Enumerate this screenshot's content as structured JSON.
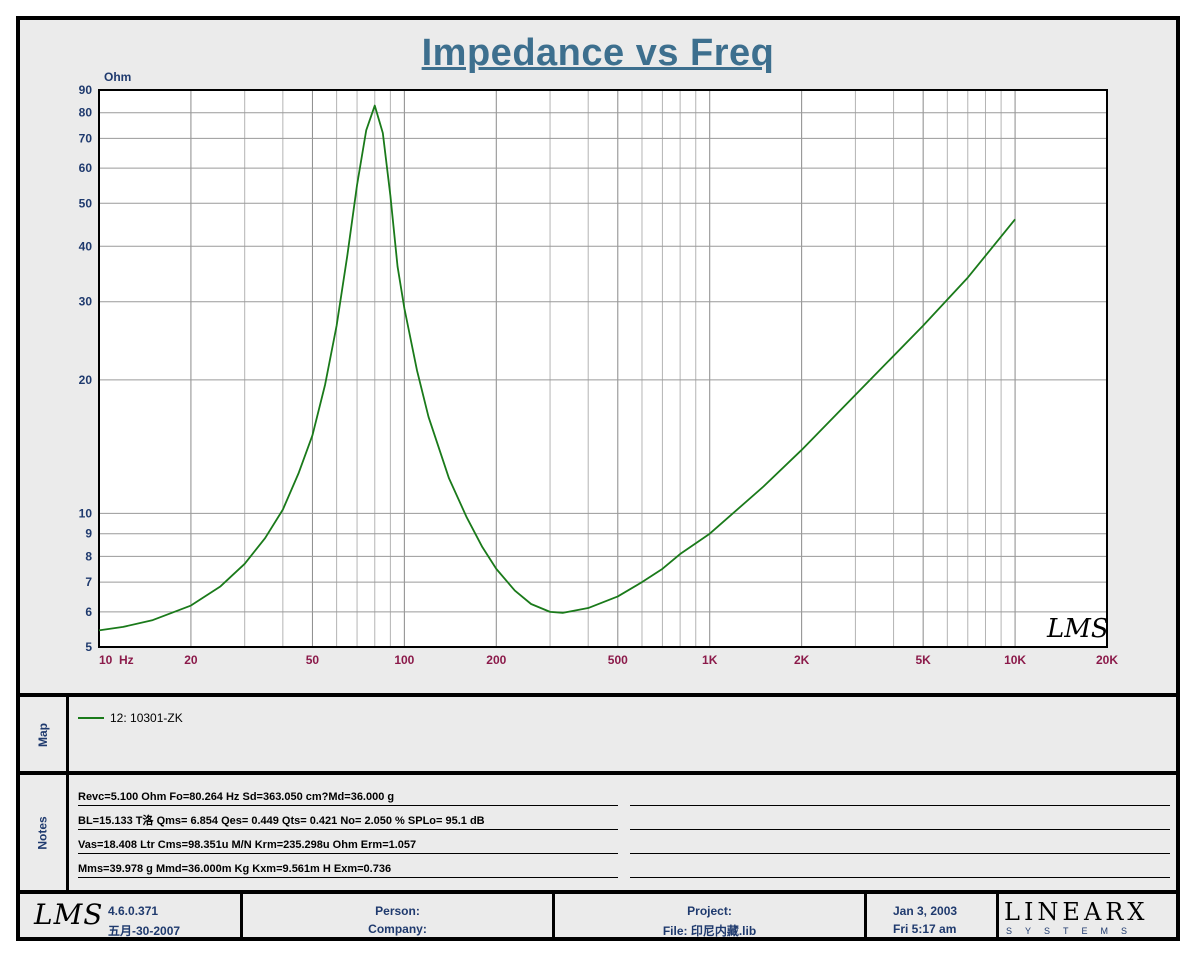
{
  "chart_data": {
    "type": "line",
    "title": "Impedance vs Freq",
    "ylabel": "Ohm",
    "xlabel": "Hz",
    "x_scale": "log",
    "y_scale": "log",
    "xlim": [
      10,
      20000
    ],
    "ylim": [
      5,
      90
    ],
    "x_ticks": [
      {
        "value": 10,
        "label": "10"
      },
      {
        "value": 20,
        "label": "20"
      },
      {
        "value": 50,
        "label": "50"
      },
      {
        "value": 100,
        "label": "100"
      },
      {
        "value": 200,
        "label": "200"
      },
      {
        "value": 500,
        "label": "500"
      },
      {
        "value": 1000,
        "label": "1K"
      },
      {
        "value": 2000,
        "label": "2K"
      },
      {
        "value": 5000,
        "label": "5K"
      },
      {
        "value": 10000,
        "label": "10K"
      },
      {
        "value": 20000,
        "label": "20K"
      }
    ],
    "y_ticks": [
      5,
      6,
      7,
      8,
      9,
      10,
      20,
      30,
      40,
      50,
      60,
      70,
      80,
      90
    ],
    "grid": true,
    "series": [
      {
        "name": "12: 10301-ZK",
        "color": "#1a7a1a",
        "points": [
          [
            10,
            5.45
          ],
          [
            12,
            5.55
          ],
          [
            15,
            5.75
          ],
          [
            20,
            6.2
          ],
          [
            25,
            6.85
          ],
          [
            30,
            7.7
          ],
          [
            35,
            8.8
          ],
          [
            40,
            10.2
          ],
          [
            45,
            12.3
          ],
          [
            50,
            15.0
          ],
          [
            55,
            19.5
          ],
          [
            60,
            26.5
          ],
          [
            65,
            38.0
          ],
          [
            70,
            55.0
          ],
          [
            75,
            73.0
          ],
          [
            80,
            83.0
          ],
          [
            85,
            72.0
          ],
          [
            90,
            52.0
          ],
          [
            95,
            36.0
          ],
          [
            100,
            29.0
          ],
          [
            110,
            21.0
          ],
          [
            120,
            16.5
          ],
          [
            140,
            12.0
          ],
          [
            160,
            9.8
          ],
          [
            180,
            8.4
          ],
          [
            200,
            7.5
          ],
          [
            230,
            6.7
          ],
          [
            260,
            6.25
          ],
          [
            300,
            6.0
          ],
          [
            330,
            5.97
          ],
          [
            400,
            6.12
          ],
          [
            500,
            6.5
          ],
          [
            600,
            7.0
          ],
          [
            700,
            7.5
          ],
          [
            800,
            8.1
          ],
          [
            1000,
            9.0
          ],
          [
            1500,
            11.5
          ],
          [
            2000,
            13.9
          ],
          [
            3000,
            18.5
          ],
          [
            5000,
            26.5
          ],
          [
            7000,
            34.0
          ],
          [
            10000,
            46.0
          ]
        ]
      }
    ],
    "watermark": "LMS"
  },
  "map": {
    "label": "Map",
    "legend_label": "12: 10301-ZK"
  },
  "notes": {
    "label": "Notes",
    "lines": [
      "Revc=5.100 Ohm  Fo=80.264 Hz  Sd=363.050 cm?Md=36.000 g",
      "BL=15.133 T洛  Qms= 6.854  Qes= 0.449  Qts= 0.421  No= 2.050 %  SPLo= 95.1 dB",
      "Vas=18.408 Ltr  Cms=98.351u M/N  Krm=235.298u Ohm  Erm=1.057",
      "Mms=39.978 g  Mmd=36.000m Kg  Kxm=9.561m H  Exm=0.736"
    ]
  },
  "footer": {
    "logo": "LMS",
    "version": "4.6.0.371",
    "build_date": "五月-30-2007",
    "person_label": "Person:",
    "company_label": "Company:",
    "project_label": "Project:",
    "file_label": "File: 印尼内藏.lib",
    "date": "Jan  3, 2003",
    "time": "Fri  5:17 am",
    "brand_name": "LINEARX",
    "brand_sub": "SYSTEMS"
  }
}
